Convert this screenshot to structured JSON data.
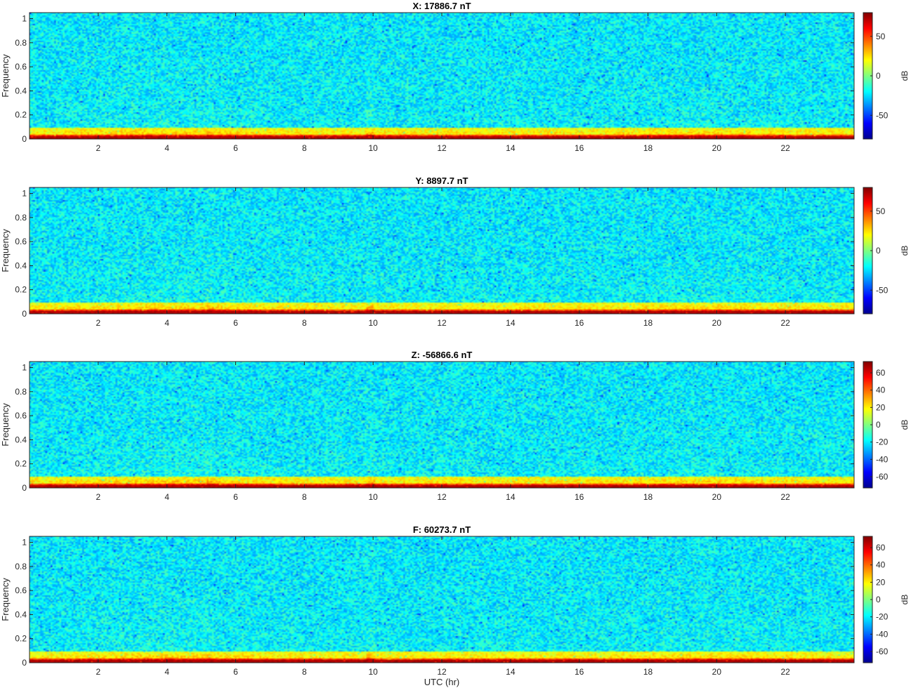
{
  "chart_data": [
    {
      "type": "heatmap",
      "title": "X: 17886.7 nT",
      "ylabel": "Frequency",
      "xlabel": "",
      "xlim": [
        0,
        24
      ],
      "ylim": [
        0,
        1.05
      ],
      "xticks": [
        2,
        4,
        6,
        8,
        10,
        12,
        14,
        16,
        18,
        20,
        22
      ],
      "yticks": [
        0,
        0.2,
        0.4,
        0.6,
        0.8,
        1
      ],
      "colorbar": {
        "label": "dB",
        "clim": [
          -80,
          80
        ],
        "ticks": [
          -50,
          0,
          50
        ]
      }
    },
    {
      "type": "heatmap",
      "title": "Y: 8897.7 nT",
      "ylabel": "Frequency",
      "xlabel": "",
      "xlim": [
        0,
        24
      ],
      "ylim": [
        0,
        1.05
      ],
      "xticks": [
        2,
        4,
        6,
        8,
        10,
        12,
        14,
        16,
        18,
        20,
        22
      ],
      "yticks": [
        0,
        0.2,
        0.4,
        0.6,
        0.8,
        1
      ],
      "colorbar": {
        "label": "dB",
        "clim": [
          -80,
          80
        ],
        "ticks": [
          -50,
          0,
          50
        ]
      }
    },
    {
      "type": "heatmap",
      "title": "Z: -56866.6 nT",
      "ylabel": "Frequency",
      "xlabel": "",
      "xlim": [
        0,
        24
      ],
      "ylim": [
        0,
        1.05
      ],
      "xticks": [
        2,
        4,
        6,
        8,
        10,
        12,
        14,
        16,
        18,
        20,
        22
      ],
      "yticks": [
        0,
        0.2,
        0.4,
        0.6,
        0.8,
        1
      ],
      "colorbar": {
        "label": "dB",
        "clim": [
          -73,
          73
        ],
        "ticks": [
          -60,
          -40,
          -20,
          0,
          20,
          40,
          60
        ]
      }
    },
    {
      "type": "heatmap",
      "title": "F: 60273.7 nT",
      "ylabel": "Frequency",
      "xlabel": "UTC (hr)",
      "xlim": [
        0,
        24
      ],
      "ylim": [
        0,
        1.05
      ],
      "xticks": [
        2,
        4,
        6,
        8,
        10,
        12,
        14,
        16,
        18,
        20,
        22
      ],
      "yticks": [
        0,
        0.2,
        0.4,
        0.6,
        0.8,
        1
      ],
      "colorbar": {
        "label": "dB",
        "clim": [
          -73,
          73
        ],
        "ticks": [
          -60,
          -40,
          -20,
          0,
          20,
          40,
          60
        ]
      }
    }
  ]
}
